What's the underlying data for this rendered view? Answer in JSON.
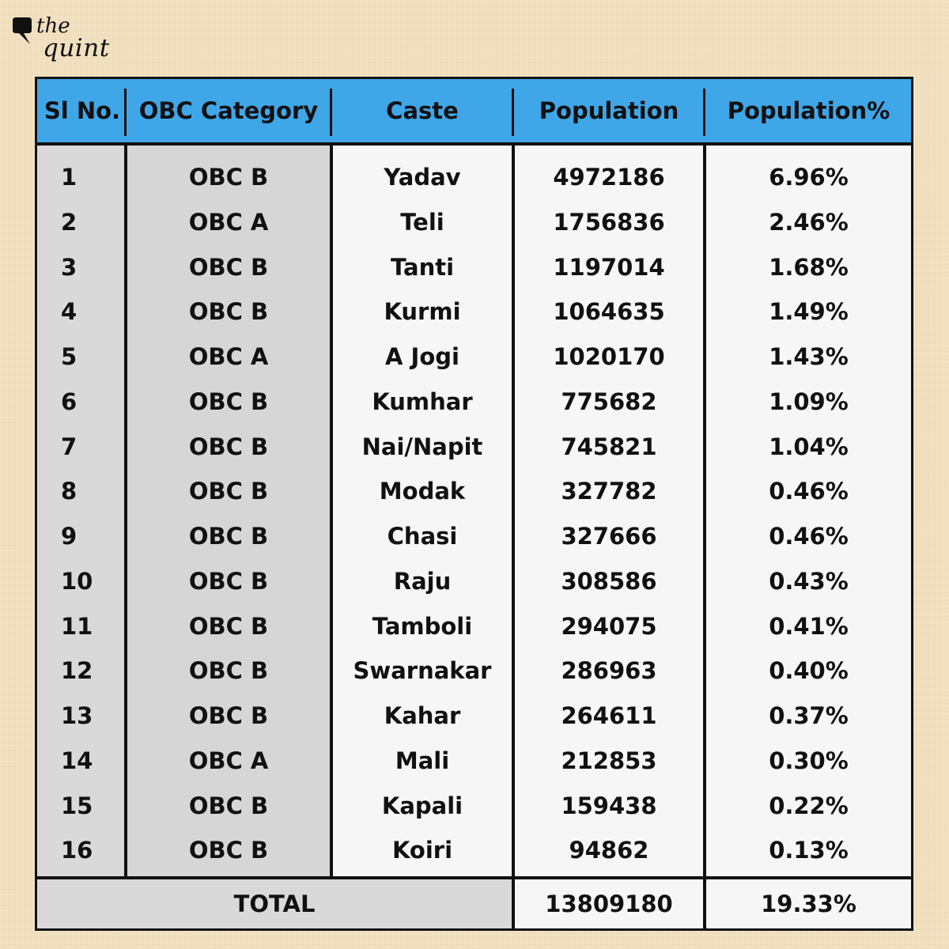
{
  "brand": {
    "line1": "the",
    "line2": "quint"
  },
  "colors": {
    "header": "#3fa6e8",
    "background": "#f1dfbe",
    "shaded_cell": "#d9d9d9",
    "light_cell": "#f6f6f6",
    "border": "#111111"
  },
  "chart_data": {
    "type": "table",
    "columns": [
      "Sl No.",
      "OBC Category",
      "Caste",
      "Population",
      "Population%"
    ],
    "rows": [
      [
        "1",
        "OBC B",
        "Yadav",
        "4972186",
        "6.96%"
      ],
      [
        "2",
        "OBC A",
        "Teli",
        "1756836",
        "2.46%"
      ],
      [
        "3",
        "OBC B",
        "Tanti",
        "1197014",
        "1.68%"
      ],
      [
        "4",
        "OBC B",
        "Kurmi",
        "1064635",
        "1.49%"
      ],
      [
        "5",
        "OBC A",
        "A Jogi",
        "1020170",
        "1.43%"
      ],
      [
        "6",
        "OBC B",
        "Kumhar",
        "775682",
        "1.09%"
      ],
      [
        "7",
        "OBC B",
        "Nai/Napit",
        "745821",
        "1.04%"
      ],
      [
        "8",
        "OBC B",
        "Modak",
        "327782",
        "0.46%"
      ],
      [
        "9",
        "OBC B",
        "Chasi",
        "327666",
        "0.46%"
      ],
      [
        "10",
        "OBC B",
        "Raju",
        "308586",
        "0.43%"
      ],
      [
        "11",
        "OBC B",
        "Tamboli",
        "294075",
        "0.41%"
      ],
      [
        "12",
        "OBC B",
        "Swarnakar",
        "286963",
        "0.40%"
      ],
      [
        "13",
        "OBC B",
        "Kahar",
        "264611",
        "0.37%"
      ],
      [
        "14",
        "OBC A",
        "Mali",
        "212853",
        "0.30%"
      ],
      [
        "15",
        "OBC B",
        "Kapali",
        "159438",
        "0.22%"
      ],
      [
        "16",
        "OBC B",
        "Koiri",
        "94862",
        "0.13%"
      ]
    ],
    "total": {
      "label": "TOTAL",
      "population": "13809180",
      "percent": "19.33%"
    }
  }
}
